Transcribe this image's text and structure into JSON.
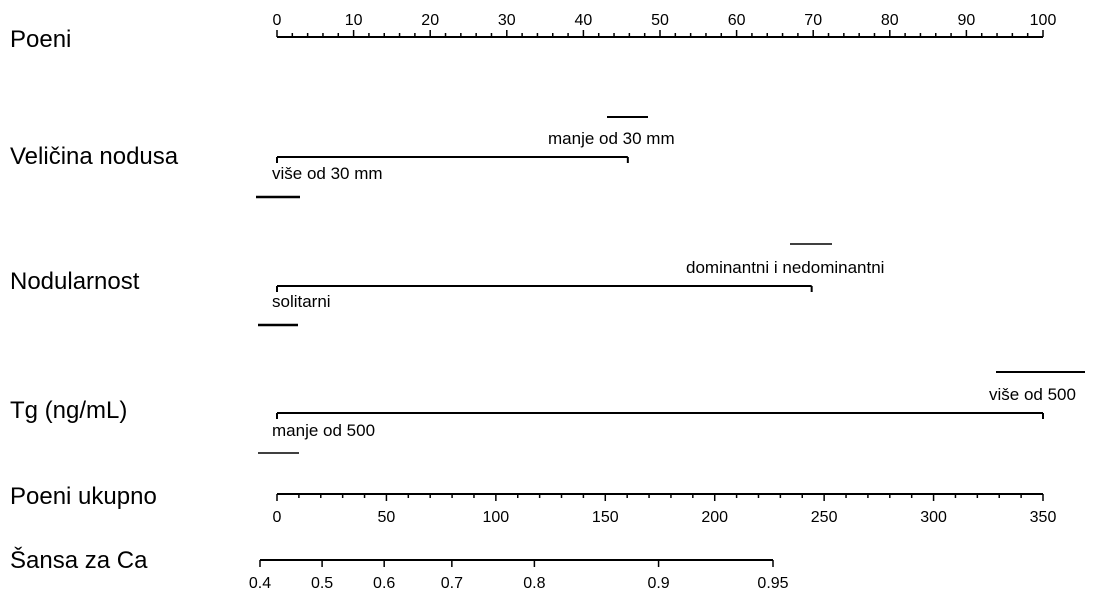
{
  "chart_data": {
    "type": "nomogram",
    "title": "",
    "points_axis": {
      "label": "Poeni",
      "min": 0,
      "max": 100,
      "tick_labels": [
        "0",
        "10",
        "20",
        "30",
        "40",
        "50",
        "60",
        "70",
        "80",
        "90",
        "100"
      ]
    },
    "predictors": [
      {
        "label": "Veličina nodusa",
        "categories": [
          {
            "name": "više od 30 mm",
            "points": 0
          },
          {
            "name": "manje od 30 mm",
            "points": 45.8
          }
        ]
      },
      {
        "label": "Nodularnost",
        "categories": [
          {
            "name": "solitarni",
            "points": 0
          },
          {
            "name": "dominantni i nedominantni",
            "points": 69.8
          }
        ]
      },
      {
        "label": "Tg (ng/mL)",
        "categories": [
          {
            "name": "manje od 500",
            "points": 0
          },
          {
            "name": "više od 500",
            "points": 100
          }
        ]
      }
    ],
    "total_points_axis": {
      "label": "Poeni ukupno",
      "min": 0,
      "max": 350,
      "tick_labels": [
        "0",
        "50",
        "100",
        "150",
        "200",
        "250",
        "300",
        "350"
      ]
    },
    "probability_axis": {
      "label": "Šansa za Ca",
      "values": [
        0.4,
        0.5,
        0.6,
        0.7,
        0.8,
        0.9,
        0.95
      ],
      "tick_labels": [
        "0.4",
        "0.5",
        "0.6",
        "0.7",
        "0.8",
        "0.9",
        "0.95"
      ]
    }
  }
}
